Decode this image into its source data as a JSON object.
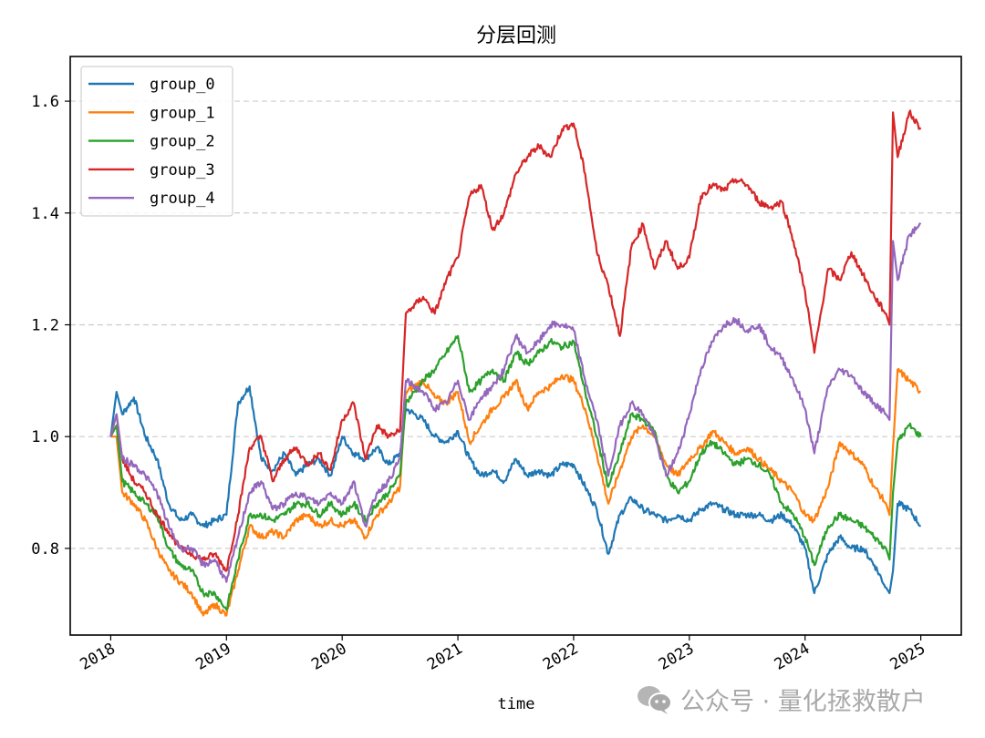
{
  "chart_data": {
    "type": "line",
    "title": "分层回测",
    "xlabel": "time",
    "ylabel": "",
    "xlim": [
      2017.65,
      2025.35
    ],
    "ylim": [
      0.645,
      1.68
    ],
    "grid": {
      "axis": "y",
      "style": "dashed",
      "color": "#cccccc"
    },
    "legend_position": "upper left",
    "x_ticks": [
      2018,
      2019,
      2020,
      2021,
      2022,
      2023,
      2024,
      2025
    ],
    "x_tick_labels": [
      "2018",
      "2019",
      "2020",
      "2021",
      "2022",
      "2023",
      "2024",
      "2025"
    ],
    "y_ticks": [
      0.8,
      1.0,
      1.2,
      1.4,
      1.6
    ],
    "y_tick_labels": [
      "0.8",
      "1.0",
      "1.2",
      "1.4",
      "1.6"
    ],
    "x": [
      2018.0,
      2018.05,
      2018.1,
      2018.2,
      2018.3,
      2018.4,
      2018.5,
      2018.6,
      2018.7,
      2018.8,
      2018.9,
      2019.0,
      2019.1,
      2019.2,
      2019.3,
      2019.4,
      2019.5,
      2019.6,
      2019.7,
      2019.8,
      2019.9,
      2020.0,
      2020.1,
      2020.2,
      2020.3,
      2020.4,
      2020.5,
      2020.55,
      2020.7,
      2020.8,
      2020.9,
      2021.0,
      2021.1,
      2021.2,
      2021.3,
      2021.4,
      2021.5,
      2021.6,
      2021.7,
      2021.8,
      2021.9,
      2022.0,
      2022.1,
      2022.2,
      2022.3,
      2022.4,
      2022.5,
      2022.6,
      2022.7,
      2022.8,
      2022.9,
      2023.0,
      2023.1,
      2023.2,
      2023.3,
      2023.4,
      2023.5,
      2023.6,
      2023.7,
      2023.8,
      2023.9,
      2024.0,
      2024.08,
      2024.2,
      2024.3,
      2024.4,
      2024.5,
      2024.6,
      2024.7,
      2024.73,
      2024.76,
      2024.8,
      2024.9,
      2025.0
    ],
    "series": [
      {
        "name": "group_0",
        "color": "#1f77b4",
        "values": [
          1.0,
          1.08,
          1.04,
          1.07,
          1.0,
          0.96,
          0.88,
          0.85,
          0.86,
          0.84,
          0.85,
          0.86,
          1.06,
          1.09,
          0.96,
          0.94,
          0.97,
          0.93,
          0.95,
          0.96,
          0.93,
          1.0,
          0.97,
          0.96,
          0.98,
          0.95,
          0.97,
          1.05,
          1.03,
          1.0,
          0.99,
          1.01,
          0.96,
          0.93,
          0.94,
          0.92,
          0.96,
          0.93,
          0.94,
          0.93,
          0.95,
          0.95,
          0.91,
          0.87,
          0.79,
          0.86,
          0.89,
          0.87,
          0.86,
          0.85,
          0.86,
          0.85,
          0.87,
          0.88,
          0.87,
          0.86,
          0.86,
          0.86,
          0.85,
          0.86,
          0.84,
          0.8,
          0.72,
          0.79,
          0.82,
          0.8,
          0.8,
          0.77,
          0.73,
          0.72,
          0.76,
          0.88,
          0.87,
          0.84
        ]
      },
      {
        "name": "group_1",
        "color": "#ff7f0e",
        "values": [
          1.0,
          1.0,
          0.9,
          0.88,
          0.85,
          0.8,
          0.76,
          0.74,
          0.72,
          0.68,
          0.7,
          0.68,
          0.76,
          0.84,
          0.82,
          0.83,
          0.82,
          0.85,
          0.86,
          0.84,
          0.85,
          0.84,
          0.85,
          0.82,
          0.86,
          0.88,
          0.91,
          1.08,
          1.1,
          1.07,
          1.06,
          1.08,
          0.99,
          1.02,
          1.05,
          1.07,
          1.1,
          1.05,
          1.08,
          1.09,
          1.11,
          1.1,
          1.05,
          0.97,
          0.88,
          0.94,
          1.0,
          1.02,
          1.0,
          0.95,
          0.93,
          0.96,
          0.98,
          1.01,
          0.99,
          0.97,
          0.98,
          0.96,
          0.94,
          0.92,
          0.9,
          0.86,
          0.85,
          0.91,
          0.99,
          0.97,
          0.95,
          0.91,
          0.88,
          0.86,
          0.98,
          1.12,
          1.1,
          1.08
        ]
      },
      {
        "name": "group_2",
        "color": "#2ca02c",
        "values": [
          1.0,
          1.02,
          0.92,
          0.9,
          0.88,
          0.86,
          0.8,
          0.77,
          0.76,
          0.72,
          0.72,
          0.69,
          0.78,
          0.86,
          0.86,
          0.85,
          0.86,
          0.88,
          0.88,
          0.86,
          0.88,
          0.86,
          0.88,
          0.85,
          0.88,
          0.9,
          0.93,
          1.06,
          1.1,
          1.12,
          1.15,
          1.18,
          1.08,
          1.1,
          1.12,
          1.1,
          1.15,
          1.13,
          1.15,
          1.17,
          1.16,
          1.17,
          1.08,
          1.0,
          0.91,
          0.97,
          1.04,
          1.03,
          1.01,
          0.93,
          0.9,
          0.92,
          0.97,
          0.99,
          0.97,
          0.95,
          0.96,
          0.95,
          0.93,
          0.88,
          0.86,
          0.82,
          0.77,
          0.84,
          0.86,
          0.85,
          0.84,
          0.82,
          0.8,
          0.78,
          0.9,
          0.99,
          1.02,
          1.0
        ]
      },
      {
        "name": "group_3",
        "color": "#d62728",
        "values": [
          1.0,
          1.04,
          0.96,
          0.92,
          0.9,
          0.86,
          0.83,
          0.8,
          0.79,
          0.78,
          0.79,
          0.76,
          0.86,
          0.98,
          1.0,
          0.92,
          0.96,
          0.98,
          0.95,
          0.97,
          0.94,
          1.03,
          1.06,
          0.96,
          1.02,
          1.0,
          1.01,
          1.22,
          1.25,
          1.22,
          1.28,
          1.32,
          1.43,
          1.45,
          1.37,
          1.4,
          1.47,
          1.5,
          1.52,
          1.5,
          1.55,
          1.56,
          1.47,
          1.33,
          1.27,
          1.18,
          1.34,
          1.38,
          1.3,
          1.35,
          1.3,
          1.32,
          1.43,
          1.45,
          1.44,
          1.46,
          1.45,
          1.42,
          1.41,
          1.42,
          1.35,
          1.26,
          1.15,
          1.3,
          1.28,
          1.33,
          1.29,
          1.25,
          1.22,
          1.2,
          1.58,
          1.5,
          1.58,
          1.55
        ]
      },
      {
        "name": "group_4",
        "color": "#9467bd",
        "values": [
          1.0,
          1.04,
          0.96,
          0.95,
          0.93,
          0.9,
          0.84,
          0.8,
          0.8,
          0.77,
          0.78,
          0.74,
          0.82,
          0.9,
          0.92,
          0.87,
          0.88,
          0.9,
          0.89,
          0.88,
          0.9,
          0.88,
          0.92,
          0.84,
          0.9,
          0.92,
          0.96,
          1.1,
          1.08,
          1.05,
          1.06,
          1.1,
          1.03,
          1.07,
          1.09,
          1.12,
          1.18,
          1.15,
          1.17,
          1.2,
          1.2,
          1.19,
          1.1,
          1.03,
          0.93,
          1.02,
          1.06,
          1.04,
          1.0,
          0.93,
          0.97,
          1.04,
          1.12,
          1.17,
          1.2,
          1.21,
          1.19,
          1.2,
          1.16,
          1.14,
          1.1,
          1.05,
          0.97,
          1.09,
          1.12,
          1.11,
          1.08,
          1.06,
          1.04,
          1.03,
          1.35,
          1.28,
          1.36,
          1.38
        ]
      }
    ]
  },
  "watermark": {
    "icon": "wechat-icon",
    "text": "公众号 · 量化拯救散户"
  }
}
